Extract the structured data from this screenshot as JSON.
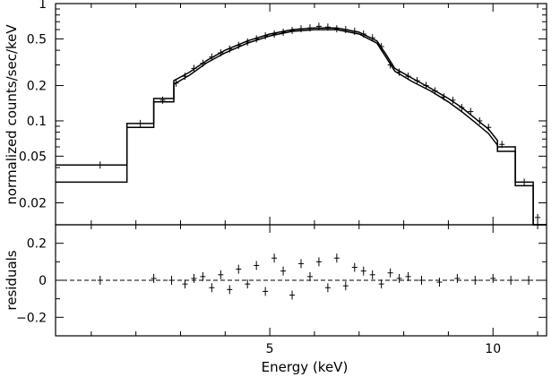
{
  "chart_data": [
    {
      "panel": "spectrum",
      "type": "line",
      "title": "",
      "xlabel": "Energy (keV)",
      "ylabel": "normalized counts/sec/keV",
      "xscale": "linear",
      "yscale": "log",
      "xlim": [
        0.2,
        11.2
      ],
      "ylim": [
        0.013,
        1.0
      ],
      "grid": false,
      "legend": "none",
      "yticks": [
        0.02,
        0.05,
        0.1,
        0.2,
        0.5,
        1
      ],
      "ytick_labels": [
        "0.02",
        "0.05",
        "0.1",
        "0.2",
        "0.5",
        "1"
      ],
      "series": [
        {
          "role": "model-upper",
          "x": [
            0.2,
            1.8,
            1.8,
            2.4,
            2.4,
            2.85,
            2.85,
            3.2,
            3.6,
            4.0,
            4.5,
            5.0,
            5.5,
            6.0,
            6.5,
            7.0,
            7.4,
            7.6,
            7.8,
            8.2,
            8.6,
            9.0,
            9.3,
            9.6,
            9.9,
            10.1,
            10.1,
            10.5,
            10.5,
            10.9,
            10.9,
            11.2
          ],
          "y": [
            0.042,
            0.042,
            0.095,
            0.095,
            0.155,
            0.155,
            0.22,
            0.26,
            0.33,
            0.4,
            0.48,
            0.55,
            0.6,
            0.62,
            0.62,
            0.57,
            0.48,
            0.37,
            0.28,
            0.23,
            0.19,
            0.155,
            0.13,
            0.105,
            0.085,
            0.068,
            0.06,
            0.06,
            0.03,
            0.03,
            0.013,
            0.013
          ]
        },
        {
          "role": "model-lower",
          "x": [
            0.2,
            1.8,
            1.8,
            2.4,
            2.4,
            2.85,
            2.85,
            3.2,
            3.6,
            4.0,
            4.5,
            5.0,
            5.5,
            6.0,
            6.5,
            7.0,
            7.4,
            7.6,
            7.8,
            8.2,
            8.6,
            9.0,
            9.3,
            9.6,
            9.9,
            10.1,
            10.1,
            10.5,
            10.5,
            10.9,
            10.9,
            11.2
          ],
          "y": [
            0.03,
            0.03,
            0.088,
            0.088,
            0.145,
            0.145,
            0.205,
            0.245,
            0.315,
            0.38,
            0.46,
            0.53,
            0.58,
            0.6,
            0.6,
            0.55,
            0.46,
            0.35,
            0.265,
            0.215,
            0.18,
            0.145,
            0.12,
            0.097,
            0.078,
            0.062,
            0.055,
            0.055,
            0.028,
            0.028,
            0.013,
            0.013
          ]
        },
        {
          "role": "data",
          "x": [
            1.2,
            2.1,
            2.6,
            2.9,
            3.1,
            3.3,
            3.5,
            3.7,
            3.9,
            4.1,
            4.3,
            4.5,
            4.7,
            4.9,
            5.1,
            5.3,
            5.5,
            5.7,
            5.9,
            6.1,
            6.3,
            6.5,
            6.7,
            6.9,
            7.1,
            7.3,
            7.5,
            7.7,
            7.9,
            8.1,
            8.3,
            8.5,
            8.7,
            8.9,
            9.1,
            9.3,
            9.5,
            9.7,
            9.9,
            10.2,
            10.7,
            11.0
          ],
          "y": [
            0.042,
            0.095,
            0.15,
            0.21,
            0.24,
            0.28,
            0.31,
            0.35,
            0.38,
            0.41,
            0.44,
            0.47,
            0.5,
            0.53,
            0.55,
            0.57,
            0.59,
            0.61,
            0.62,
            0.64,
            0.63,
            0.61,
            0.6,
            0.58,
            0.55,
            0.51,
            0.43,
            0.3,
            0.26,
            0.24,
            0.22,
            0.2,
            0.18,
            0.16,
            0.15,
            0.13,
            0.12,
            0.1,
            0.088,
            0.063,
            0.03,
            0.015
          ]
        }
      ]
    },
    {
      "panel": "residuals",
      "type": "scatter",
      "title": "",
      "xlabel": "Energy (keV)",
      "ylabel": "residuals",
      "xscale": "linear",
      "xlim": [
        0.2,
        11.2
      ],
      "ylim": [
        -0.3,
        0.3
      ],
      "grid": false,
      "legend": "none",
      "zero_line": "dashed",
      "xticks": [
        5,
        10
      ],
      "xtick_labels": [
        "5",
        "10"
      ],
      "yticks": [
        -0.2,
        0,
        0.2
      ],
      "ytick_labels": [
        "−0.2",
        "0",
        "0.2"
      ],
      "series": [
        {
          "role": "residual-data",
          "x": [
            1.2,
            2.4,
            2.8,
            3.1,
            3.3,
            3.5,
            3.7,
            3.9,
            4.1,
            4.3,
            4.5,
            4.7,
            4.9,
            5.1,
            5.3,
            5.5,
            5.7,
            5.9,
            6.1,
            6.3,
            6.5,
            6.7,
            6.9,
            7.1,
            7.3,
            7.5,
            7.7,
            7.9,
            8.1,
            8.4,
            8.8,
            9.2,
            9.6,
            10.0,
            10.4,
            10.8
          ],
          "y": [
            0.0,
            0.01,
            0.0,
            -0.02,
            0.01,
            0.02,
            -0.04,
            0.03,
            -0.05,
            0.06,
            -0.02,
            0.08,
            -0.06,
            0.12,
            0.05,
            -0.08,
            0.09,
            0.02,
            0.1,
            -0.04,
            0.12,
            -0.03,
            0.07,
            0.05,
            0.03,
            -0.02,
            0.04,
            0.01,
            0.02,
            0.0,
            -0.01,
            0.01,
            0.0,
            0.01,
            0.0,
            0.0
          ]
        }
      ]
    }
  ]
}
